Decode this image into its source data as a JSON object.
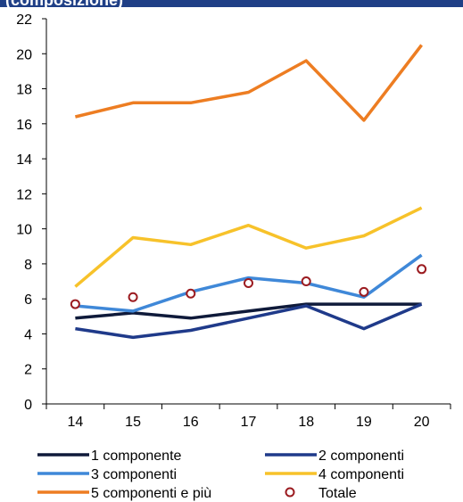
{
  "header": {
    "title": "(composizione)"
  },
  "colors": {
    "header_bar": "#1f3f86",
    "axis": "#000000"
  },
  "chart_data": {
    "type": "line",
    "title": "",
    "xlabel": "",
    "ylabel": "",
    "x": [
      "14",
      "15",
      "16",
      "17",
      "18",
      "19",
      "20"
    ],
    "ylim": [
      0,
      22
    ],
    "yticks": [
      0,
      2,
      4,
      6,
      8,
      10,
      12,
      14,
      16,
      18,
      20,
      22
    ],
    "grid": false,
    "legend_position": "bottom",
    "series": [
      {
        "name": "1 componente",
        "type": "line",
        "color": "#0f1a3a",
        "values": [
          4.9,
          5.2,
          4.9,
          5.3,
          5.7,
          5.7,
          5.7
        ]
      },
      {
        "name": "2 componenti",
        "type": "line",
        "color": "#1f3a8a",
        "values": [
          4.3,
          3.8,
          4.2,
          4.9,
          5.6,
          4.3,
          5.7
        ]
      },
      {
        "name": "3 componenti",
        "type": "line",
        "color": "#3f88d8",
        "values": [
          5.6,
          5.3,
          6.4,
          7.2,
          6.9,
          6.1,
          8.5
        ]
      },
      {
        "name": "4 componenti",
        "type": "line",
        "color": "#f7c22a",
        "values": [
          6.7,
          9.5,
          9.1,
          10.2,
          8.9,
          9.6,
          11.2
        ]
      },
      {
        "name": "5 componenti e più",
        "type": "line",
        "color": "#ed7d22",
        "values": [
          16.4,
          17.2,
          17.2,
          17.8,
          19.6,
          16.2,
          20.5
        ]
      },
      {
        "name": "Totale",
        "type": "marker",
        "color": "#9b1b20",
        "values": [
          5.7,
          6.1,
          6.3,
          6.9,
          7.0,
          6.4,
          7.7
        ]
      }
    ]
  }
}
